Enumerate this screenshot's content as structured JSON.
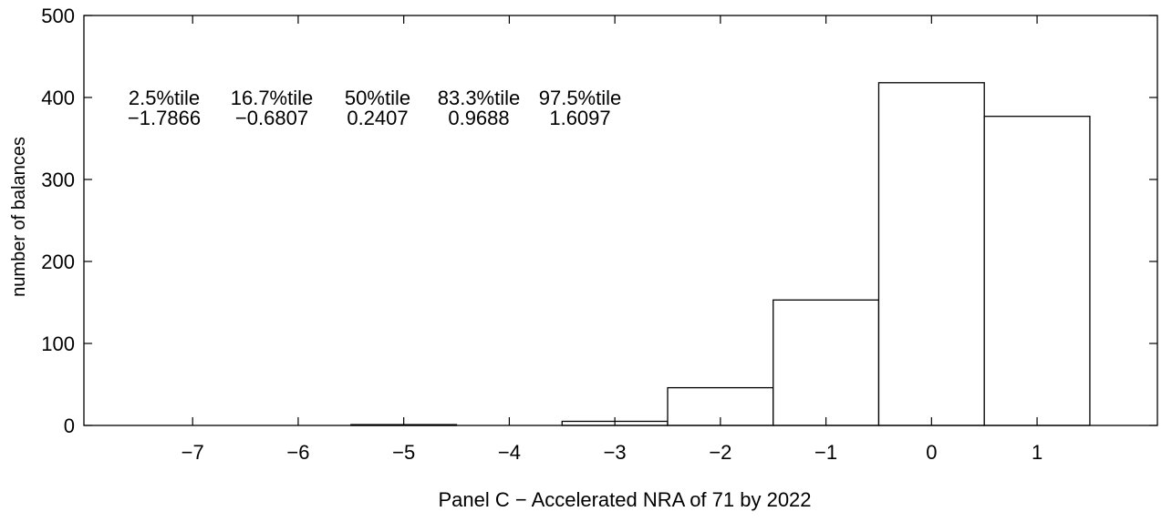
{
  "chart_data": {
    "type": "bar",
    "title": "",
    "xlabel": "Panel C − Accelerated NRA of 71 by 2022",
    "ylabel": "number of balances",
    "categories": [
      "−7",
      "−6",
      "−5",
      "−4",
      "−3",
      "−2",
      "−1",
      "0",
      "1"
    ],
    "x": [
      -7,
      -6,
      -5,
      -4,
      -3,
      -2,
      -1,
      0,
      1
    ],
    "values": [
      0,
      0,
      1,
      0,
      5,
      46,
      153,
      418,
      377
    ],
    "bin_width": 1,
    "xlim": [
      -8.03,
      2.14
    ],
    "ylim": [
      0,
      500
    ],
    "yticks": [
      0,
      100,
      200,
      300,
      400,
      500
    ],
    "grid": false,
    "bar_fill": "#ffffff",
    "bar_stroke": "#000000",
    "percentiles": {
      "labels": [
        "2.5%tile",
        "16.7%tile",
        "50%tile",
        "83.3%tile",
        "97.5%tile"
      ],
      "values": [
        "−1.7866",
        "−0.6807",
        "0.2407",
        "0.9688",
        "1.6097"
      ]
    }
  }
}
